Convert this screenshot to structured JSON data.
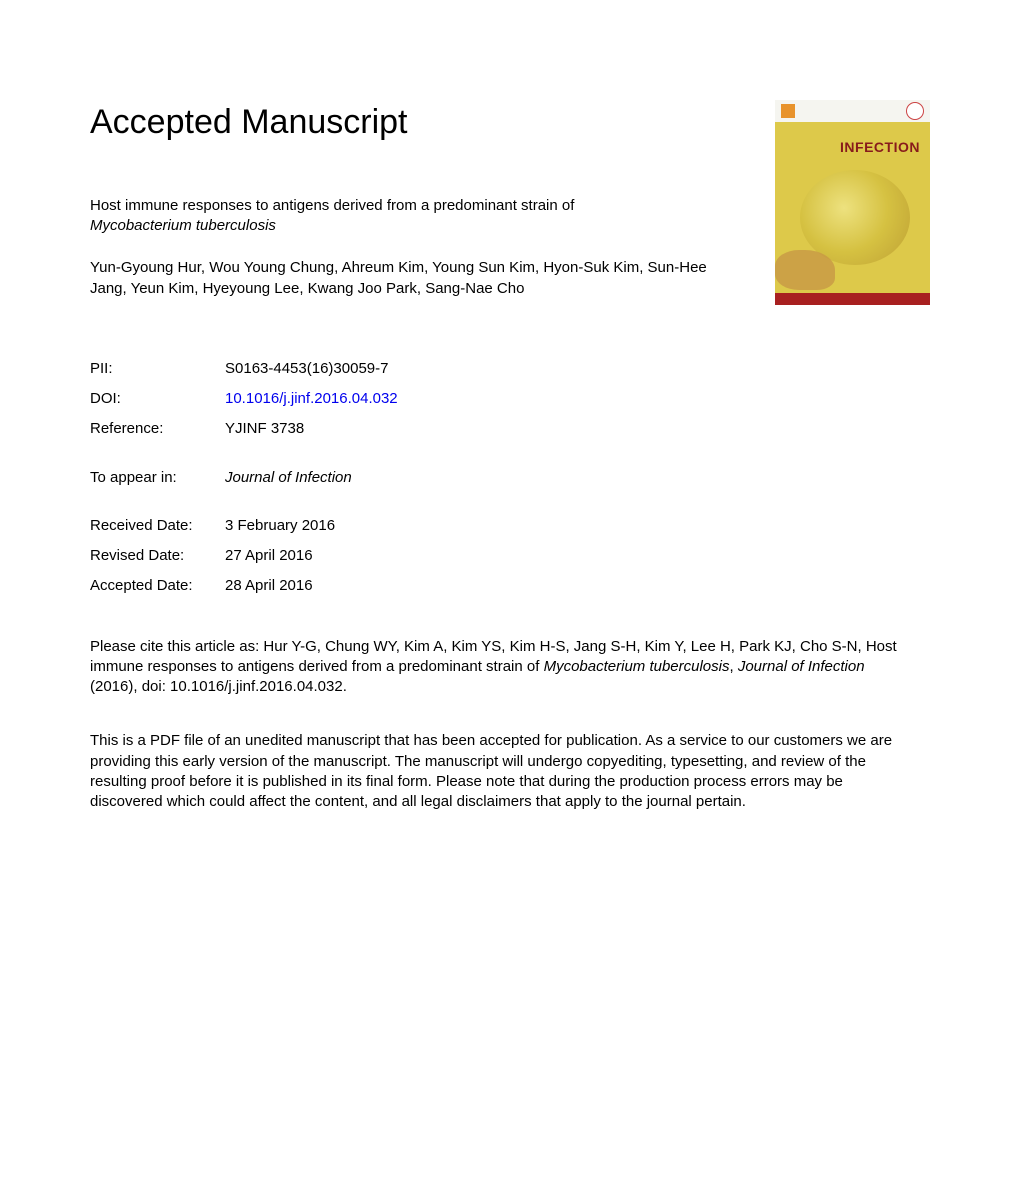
{
  "heading": "Accepted Manuscript",
  "cover": {
    "journal_name": "INFECTION",
    "bg_color": "#ddc94a",
    "accent_color": "#a82020",
    "logo_color": "#e8932c"
  },
  "title": {
    "line1": "Host immune responses to antigens derived from a predominant strain of",
    "line2_italic": "Mycobacterium tuberculosis"
  },
  "authors": "Yun-Gyoung Hur, Wou Young Chung, Ahreum Kim, Young Sun Kim, Hyon-Suk Kim, Sun-Hee Jang, Yeun Kim, Hyeyoung Lee, Kwang Joo Park, Sang-Nae Cho",
  "meta": {
    "pii": {
      "label": "PII:",
      "value": "S0163-4453(16)30059-7"
    },
    "doi": {
      "label": "DOI:",
      "value": "10.1016/j.jinf.2016.04.032"
    },
    "reference": {
      "label": "Reference:",
      "value": "YJINF 3738"
    },
    "appear": {
      "label": "To appear in:",
      "value": "Journal of Infection"
    },
    "received": {
      "label": "Received Date:",
      "value": "3 February 2016"
    },
    "revised": {
      "label": "Revised Date:",
      "value": "27 April 2016"
    },
    "accepted": {
      "label": "Accepted Date:",
      "value": "28 April 2016"
    }
  },
  "citation": {
    "prefix": "Please cite this article as: Hur Y-G, Chung WY, Kim A, Kim YS, Kim H-S, Jang S-H, Kim Y, Lee H, Park KJ, Cho S-N, Host immune responses to antigens derived from a predominant strain of ",
    "italic1": "Mycobacterium tuberculosis",
    "mid": ", ",
    "italic2": "Journal of Infection",
    "suffix": " (2016), doi: 10.1016/j.jinf.2016.04.032."
  },
  "disclaimer": "This is a PDF file of an unedited manuscript that has been accepted for publication. As a service to our customers we are providing this early version of the manuscript. The manuscript will undergo copyediting, typesetting, and review of the resulting proof before it is published in its final form. Please note that during the production process errors may be discovered which could affect the content, and all legal disclaimers that apply to the journal pertain."
}
